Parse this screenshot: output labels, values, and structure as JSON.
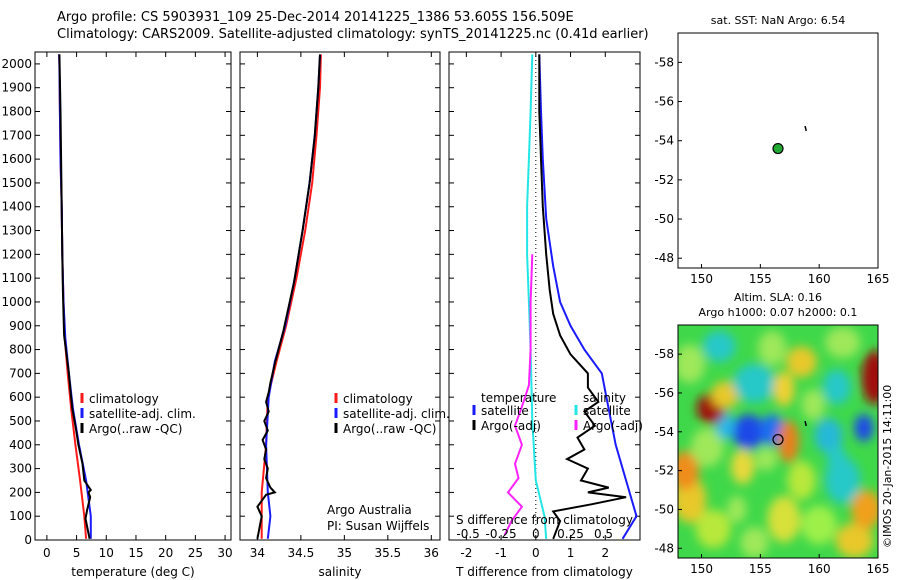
{
  "header": {
    "line1": "Argo profile: CS 5903931_109 25-Dec-2014 20141225_1386 53.605S 156.509E",
    "line2": "Climatology: CARS2009. Satellite-adjusted climatology: synTS_20141225.nc (0.41d earlier)"
  },
  "credit": "©IMOS 20-Jan-2015 14:11:00",
  "colors": {
    "climatology": "#ff1a1a",
    "satellite": "#1a1aff",
    "argo": "#000000",
    "sat_s": "#22e6e6",
    "argo_s": "#ff22ff"
  },
  "chart_data": [
    {
      "type": "line",
      "xlabel": "temperature (deg C)",
      "xlim": [
        -2,
        31
      ],
      "ylim": [
        2050,
        0
      ],
      "xticks": [
        "0",
        "5",
        "10",
        "15",
        "20",
        "25",
        "30"
      ],
      "yticks": [
        "0",
        "100",
        "200",
        "300",
        "400",
        "500",
        "600",
        "700",
        "800",
        "900",
        "1000",
        "1100",
        "1200",
        "1300",
        "1400",
        "1500",
        "1600",
        "1700",
        "1800",
        "1900",
        "2000"
      ],
      "legend": [
        "climatology",
        "satellite-adj. clim.",
        "Argo(..raw -QC)"
      ],
      "series": [
        {
          "name": "climatology",
          "points": [
            [
              6.6,
              5
            ],
            [
              6.3,
              100
            ],
            [
              5.6,
              250
            ],
            [
              4.8,
              400
            ],
            [
              4.1,
              550
            ],
            [
              3.5,
              700
            ],
            [
              3.0,
              850
            ],
            [
              2.8,
              1000
            ],
            [
              2.6,
              1200
            ],
            [
              2.5,
              1400
            ],
            [
              2.3,
              1600
            ],
            [
              2.2,
              1800
            ],
            [
              2.1,
              2000
            ],
            [
              2.05,
              2040
            ]
          ]
        },
        {
          "name": "satellite-adj. clim.",
          "points": [
            [
              7.4,
              5
            ],
            [
              7.4,
              100
            ],
            [
              6.6,
              250
            ],
            [
              5.4,
              400
            ],
            [
              4.4,
              550
            ],
            [
              3.7,
              700
            ],
            [
              3.1,
              850
            ],
            [
              2.8,
              1000
            ],
            [
              2.6,
              1200
            ],
            [
              2.5,
              1400
            ],
            [
              2.3,
              1600
            ],
            [
              2.2,
              1800
            ],
            [
              2.1,
              2000
            ],
            [
              2.05,
              2040
            ]
          ]
        },
        {
          "name": "Argo(..raw -QC)",
          "points": [
            [
              7.2,
              5
            ],
            [
              6.5,
              90
            ],
            [
              6.8,
              130
            ],
            [
              7.3,
              180
            ],
            [
              7.0,
              200
            ],
            [
              7.4,
              210
            ],
            [
              6.3,
              250
            ],
            [
              6.0,
              320
            ],
            [
              5.3,
              400
            ],
            [
              4.8,
              480
            ],
            [
              4.3,
              550
            ],
            [
              4.0,
              620
            ],
            [
              3.7,
              700
            ],
            [
              3.3,
              780
            ],
            [
              2.9,
              860
            ],
            [
              2.8,
              950
            ],
            [
              2.7,
              1050
            ],
            [
              2.6,
              1200
            ],
            [
              2.5,
              1400
            ],
            [
              2.4,
              1600
            ],
            [
              2.3,
              1800
            ],
            [
              2.15,
              2000
            ],
            [
              2.1,
              2040
            ]
          ]
        }
      ]
    },
    {
      "type": "line",
      "xlabel": "salinity",
      "xlim": [
        33.8,
        36.1
      ],
      "ylim": [
        2050,
        0
      ],
      "xticks": [
        "34",
        "34.5",
        "35",
        "35.5",
        "36"
      ],
      "legend": [
        "climatology",
        "satellite-adj. clim.",
        "Argo(..raw -QC)"
      ],
      "annotations": [
        "Argo Australia",
        "PI: Susan Wijffels"
      ],
      "series": [
        {
          "name": "climatology",
          "points": [
            [
              34.05,
              5
            ],
            [
              34.05,
              200
            ],
            [
              34.1,
              400
            ],
            [
              34.12,
              600
            ],
            [
              34.22,
              750
            ],
            [
              34.33,
              900
            ],
            [
              34.45,
              1100
            ],
            [
              34.55,
              1300
            ],
            [
              34.63,
              1500
            ],
            [
              34.68,
              1700
            ],
            [
              34.72,
              1900
            ],
            [
              34.73,
              2040
            ]
          ]
        },
        {
          "name": "satellite-adj. clim.",
          "points": [
            [
              34.12,
              5
            ],
            [
              34.15,
              100
            ],
            [
              34.12,
              200
            ],
            [
              34.1,
              400
            ],
            [
              34.13,
              600
            ],
            [
              34.2,
              750
            ],
            [
              34.32,
              900
            ],
            [
              34.43,
              1100
            ],
            [
              34.52,
              1300
            ],
            [
              34.6,
              1500
            ],
            [
              34.66,
              1700
            ],
            [
              34.7,
              1900
            ],
            [
              34.72,
              2040
            ]
          ]
        },
        {
          "name": "Argo(..raw -QC)",
          "points": [
            [
              34.0,
              5
            ],
            [
              34.05,
              100
            ],
            [
              34.0,
              140
            ],
            [
              34.1,
              190
            ],
            [
              34.2,
              200
            ],
            [
              34.15,
              220
            ],
            [
              34.1,
              260
            ],
            [
              34.12,
              300
            ],
            [
              34.08,
              340
            ],
            [
              34.1,
              380
            ],
            [
              34.06,
              420
            ],
            [
              34.12,
              460
            ],
            [
              34.08,
              500
            ],
            [
              34.13,
              540
            ],
            [
              34.1,
              580
            ],
            [
              34.13,
              620
            ],
            [
              34.15,
              660
            ],
            [
              34.2,
              740
            ],
            [
              34.3,
              880
            ],
            [
              34.42,
              1080
            ],
            [
              34.52,
              1300
            ],
            [
              34.6,
              1500
            ],
            [
              34.66,
              1700
            ],
            [
              34.7,
              1900
            ],
            [
              34.72,
              2040
            ]
          ]
        }
      ]
    },
    {
      "type": "line",
      "xlabel": "T difference from climatology",
      "xlabel_top": "S difference from climatology",
      "xlim": [
        -2.5,
        3
      ],
      "ylim": [
        2050,
        0
      ],
      "xticks": [
        "-2",
        "-1",
        "0",
        "1",
        "2"
      ],
      "xticks_top": [
        "-0.5",
        "-0.25",
        "0",
        "0.25",
        "0.5"
      ],
      "legend_headers": [
        "temperature",
        "salinity"
      ],
      "legend": [
        "satellite",
        "Argo(-adj)",
        "satellite",
        "Argo(-adj)"
      ],
      "series": [
        {
          "name": "temperature satellite",
          "points": [
            [
              2.5,
              5
            ],
            [
              2.9,
              100
            ],
            [
              2.6,
              250
            ],
            [
              2.3,
              400
            ],
            [
              2.1,
              550
            ],
            [
              1.9,
              700
            ],
            [
              1.4,
              800
            ],
            [
              1.0,
              900
            ],
            [
              0.7,
              1000
            ],
            [
              0.5,
              1150
            ],
            [
              0.3,
              1350
            ],
            [
              0.2,
              1600
            ],
            [
              0.15,
              1800
            ],
            [
              0.1,
              2040
            ]
          ]
        },
        {
          "name": "temperature Argo(-adj)",
          "points": [
            [
              0.5,
              5
            ],
            [
              0.7,
              80
            ],
            [
              0.5,
              120
            ],
            [
              1.6,
              150
            ],
            [
              2.6,
              180
            ],
            [
              1.5,
              200
            ],
            [
              2.1,
              220
            ],
            [
              1.3,
              250
            ],
            [
              1.5,
              300
            ],
            [
              0.9,
              340
            ],
            [
              1.4,
              380
            ],
            [
              1.2,
              430
            ],
            [
              1.7,
              480
            ],
            [
              1.4,
              540
            ],
            [
              1.8,
              580
            ],
            [
              1.5,
              640
            ],
            [
              1.5,
              700
            ],
            [
              1.0,
              780
            ],
            [
              0.7,
              860
            ],
            [
              0.5,
              950
            ],
            [
              0.4,
              1050
            ],
            [
              0.3,
              1200
            ],
            [
              0.2,
              1400
            ],
            [
              0.15,
              1600
            ],
            [
              0.1,
              1800
            ],
            [
              0.1,
              2040
            ]
          ]
        },
        {
          "name": "salinity satellite",
          "points": [
            [
              0.3,
              5
            ],
            [
              0.25,
              100
            ],
            [
              0.0,
              250
            ],
            [
              -0.1,
              500
            ],
            [
              -0.15,
              800
            ],
            [
              -0.2,
              1000
            ],
            [
              -0.25,
              1200
            ],
            [
              -0.25,
              1400
            ],
            [
              -0.2,
              1600
            ],
            [
              -0.15,
              1800
            ],
            [
              -0.1,
              2040
            ]
          ]
        },
        {
          "name": "salinity Argo(-adj)",
          "points": [
            [
              -0.9,
              20
            ],
            [
              -0.7,
              80
            ],
            [
              -0.4,
              140
            ],
            [
              -0.8,
              200
            ],
            [
              -0.5,
              260
            ],
            [
              -0.6,
              320
            ],
            [
              -0.4,
              400
            ],
            [
              -0.6,
              480
            ],
            [
              -0.4,
              560
            ],
            [
              -0.2,
              650
            ],
            [
              -0.15,
              800
            ],
            [
              -0.15,
              1000
            ],
            [
              -0.1,
              1200
            ]
          ]
        }
      ]
    },
    {
      "type": "scatter",
      "title": "sat. SST: NaN Argo: 6.54",
      "xlim": [
        148,
        165
      ],
      "ylim": [
        -59.5,
        -47.5
      ],
      "xticks": [
        "150",
        "155",
        "160",
        "165"
      ],
      "yticks": [
        "-48",
        "-50",
        "-52",
        "-54",
        "-56",
        "-58"
      ],
      "points": [
        {
          "x": 156.5,
          "y": -53.6
        }
      ]
    },
    {
      "type": "heatmap",
      "title_line1": "Altim. SLA: 0.16",
      "title_line2": "Argo h1000: 0.07 h2000: 0.1",
      "xlim": [
        148,
        165
      ],
      "ylim": [
        -59.5,
        -47.5
      ],
      "xticks": [
        "150",
        "155",
        "160",
        "165"
      ],
      "yticks": [
        "-48",
        "-50",
        "-52",
        "-54",
        "-56",
        "-58"
      ],
      "point": {
        "x": 156.5,
        "y": -53.6
      }
    }
  ]
}
